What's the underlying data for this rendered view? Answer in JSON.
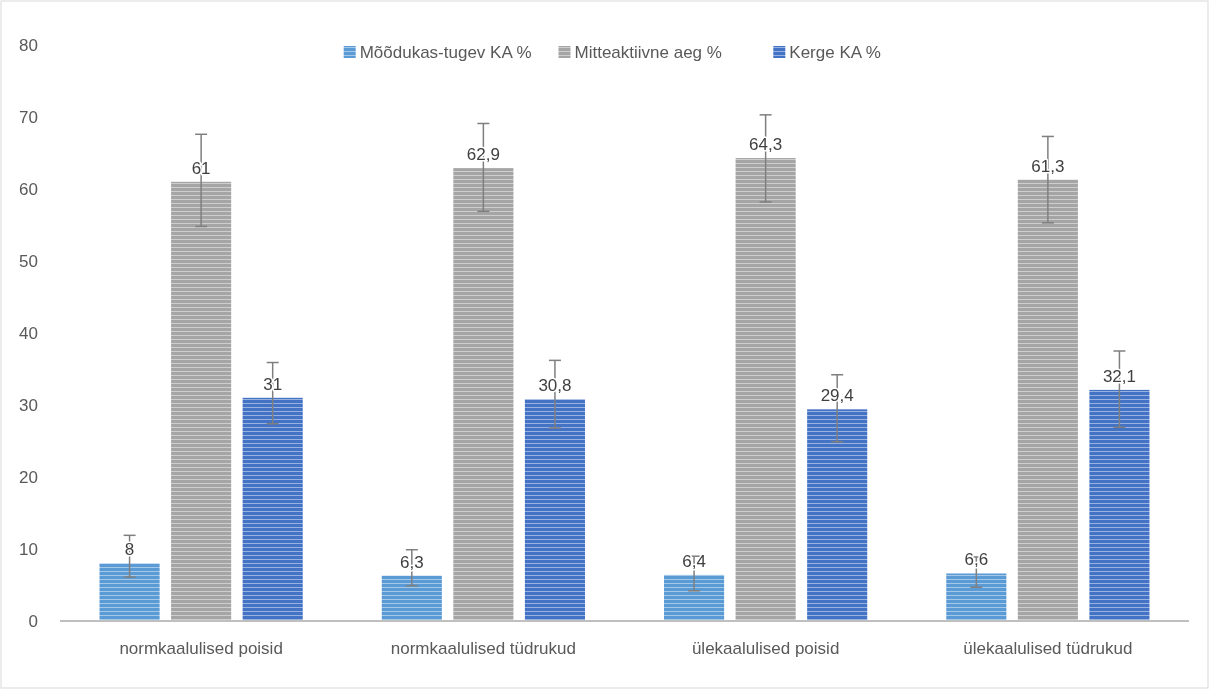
{
  "chart_data": {
    "type": "bar",
    "categories": [
      "normkaalulised poisid",
      "normkaalulised tüdrukud",
      "ülekaalulised poisid",
      "ülekaalulised tüdrukud"
    ],
    "series": [
      {
        "name": "Mõõdukas-tugev KA %",
        "color": "#5b9bd5",
        "values": [
          8,
          6.3,
          6.4,
          6.6
        ],
        "value_labels": [
          "8",
          "6,3",
          "6,4",
          "6,6"
        ],
        "errors": [
          [
            6.1,
            11.9
          ],
          [
            4.9,
            9.9
          ],
          [
            4.2,
            9.0
          ],
          [
            4.7,
            8.9
          ]
        ]
      },
      {
        "name": "Mitteaktiivne aeg %",
        "color": "#a5a5a5",
        "values": [
          61,
          62.9,
          64.3,
          61.3
        ],
        "value_labels": [
          "61",
          "62,9",
          "64,3",
          "61,3"
        ],
        "errors": [
          [
            54.8,
            67.6
          ],
          [
            56.9,
            69.1
          ],
          [
            58.2,
            70.3
          ],
          [
            55.3,
            67.3
          ]
        ]
      },
      {
        "name": "Kerge KA %",
        "color": "#4472c4",
        "values": [
          31,
          30.8,
          29.4,
          32.1
        ],
        "value_labels": [
          "31",
          "30,8",
          "29,4",
          "32,1"
        ],
        "errors": [
          [
            27.4,
            35.9
          ],
          [
            26.8,
            36.2
          ],
          [
            24.9,
            34.2
          ],
          [
            26.9,
            37.5
          ]
        ]
      }
    ],
    "ylim": [
      0,
      80
    ],
    "yticks": [
      0,
      10,
      20,
      30,
      40,
      50,
      60,
      70,
      80
    ],
    "grid": false,
    "legend": "top"
  }
}
